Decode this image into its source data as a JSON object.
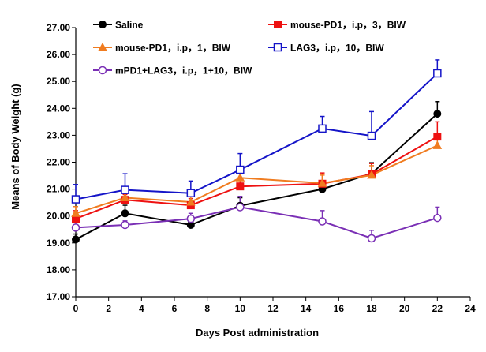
{
  "chart_data": {
    "type": "line",
    "title": "",
    "xlabel": "Days Post administration",
    "ylabel": "Means of Body Weight (g)",
    "xlim": [
      0,
      24
    ],
    "ylim": [
      17.0,
      27.0
    ],
    "xticks": [
      0,
      2,
      4,
      6,
      8,
      10,
      12,
      14,
      16,
      18,
      20,
      22,
      24
    ],
    "yticks": [
      "17.00",
      "18.00",
      "19.00",
      "20.00",
      "21.00",
      "22.00",
      "23.00",
      "24.00",
      "25.00",
      "26.00",
      "27.00"
    ],
    "grid": false,
    "legend_position": "top",
    "series": [
      {
        "name": "Saline",
        "color": "#000000",
        "marker": "filled-circle",
        "x": [
          0,
          3,
          7,
          10,
          15,
          18,
          22
        ],
        "y": [
          19.13,
          20.1,
          19.67,
          20.38,
          21.0,
          21.58,
          23.8
        ],
        "err": [
          0.2,
          0.3,
          0.1,
          0.3,
          0.2,
          0.4,
          0.45
        ]
      },
      {
        "name": "mouse-PD1，i.p，3，BIW",
        "color": "#ee1111",
        "marker": "filled-square",
        "x": [
          0,
          3,
          7,
          10,
          15,
          18,
          22
        ],
        "y": [
          19.9,
          20.6,
          20.4,
          21.1,
          21.2,
          21.55,
          22.95
        ],
        "err": [
          0.3,
          0.2,
          0.25,
          0.5,
          0.4,
          0.4,
          0.55
        ]
      },
      {
        "name": "mouse-PD1，i.p，1，BIW",
        "color": "#f07c20",
        "marker": "filled-triangle",
        "x": [
          0,
          3,
          7,
          10,
          15,
          18,
          22
        ],
        "y": [
          20.1,
          20.68,
          20.52,
          21.42,
          21.22,
          21.52,
          22.62
        ],
        "err": [
          0.25,
          0.2,
          0.2,
          0.3,
          0.3,
          0.35,
          0.3
        ]
      },
      {
        "name": "LAG3，i.p，10，BIW",
        "color": "#1414c8",
        "marker": "open-square",
        "x": [
          0,
          3,
          7,
          10,
          15,
          18,
          22
        ],
        "y": [
          20.62,
          20.97,
          20.85,
          21.72,
          23.25,
          22.98,
          25.3
        ],
        "err": [
          0.55,
          0.6,
          0.45,
          0.6,
          0.45,
          0.9,
          0.5
        ]
      },
      {
        "name": "mPD1+LAG3，i.p，1+10，BIW",
        "color": "#7a2fb5",
        "marker": "open-circle",
        "x": [
          0,
          3,
          7,
          10,
          15,
          18,
          22
        ],
        "y": [
          19.57,
          19.67,
          19.9,
          20.33,
          19.8,
          19.17,
          19.93
        ],
        "err": [
          0.2,
          0.15,
          0.2,
          0.4,
          0.4,
          0.3,
          0.4
        ]
      }
    ]
  }
}
